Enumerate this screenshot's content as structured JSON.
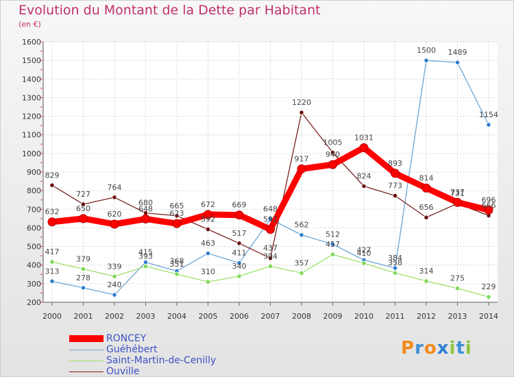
{
  "title": "Evolution du Montant de la Dette par Habitant",
  "unit": "(en €)",
  "logo_text": "Proxiti",
  "chart_data": {
    "type": "line",
    "title": "Evolution du Montant de la Dette par Habitant",
    "ylabel": "(en €)",
    "xlabel": "",
    "x": [
      "2000",
      "2001",
      "2002",
      "2003",
      "2004",
      "2005",
      "2006",
      "2007",
      "2008",
      "2009",
      "2010",
      "2011",
      "2012",
      "2013",
      "2014"
    ],
    "ylim": [
      200,
      1600
    ],
    "yticks": [
      "200",
      "300",
      "400",
      "500",
      "600",
      "700",
      "800",
      "900",
      "1000",
      "1100",
      "1200",
      "1300",
      "1400",
      "1500",
      "1600"
    ],
    "grid": true,
    "legend_position": "bottom-left",
    "series": [
      {
        "name": "RONCEY",
        "color": "#ff0000",
        "style": "thick",
        "values": [
          632,
          650,
          620,
          648,
          623,
          672,
          669,
          592,
          917,
          940,
          1031,
          893,
          814,
          737,
          696
        ],
        "labels": [
          "632",
          "650",
          "620",
          "648",
          "623",
          "672",
          "669",
          "592",
          "917",
          "940",
          "1031",
          "893",
          "814",
          "737",
          "696"
        ]
      },
      {
        "name": "Guéhébert",
        "color": "#6aa6d6",
        "marker": "#2f7fd0",
        "values": [
          313,
          278,
          240,
          415,
          368,
          463,
          411,
          648,
          562,
          512,
          427,
          384,
          1500,
          1489,
          1154
        ],
        "labels": [
          "313",
          "278",
          "240",
          "415",
          "368",
          "463",
          "411",
          "648",
          "562",
          "512",
          "427",
          "384",
          "1500",
          "1489",
          "1154"
        ]
      },
      {
        "name": "Saint-Martin-de-Cenilly",
        "color": "#9be16a",
        "marker": "#7ed957",
        "values": [
          417,
          379,
          339,
          393,
          351,
          310,
          340,
          394,
          357,
          457,
          410,
          358,
          314,
          275,
          229
        ],
        "labels": [
          "417",
          "379",
          "339",
          "393",
          "351",
          "310",
          "340",
          "394",
          "357",
          "457",
          "410",
          "358",
          "314",
          "275",
          "229"
        ]
      },
      {
        "name": "Ouville",
        "color": "#7a1f1f",
        "marker": "#6b1010",
        "values": [
          829,
          727,
          764,
          680,
          665,
          592,
          517,
          437,
          1220,
          1005,
          824,
          773,
          656,
          731,
          666
        ],
        "labels": [
          "829",
          "727",
          "764",
          "680",
          "665",
          "592",
          "517",
          "437",
          "1220",
          "1005",
          "824",
          "773",
          "656",
          "731",
          "666"
        ]
      }
    ]
  }
}
